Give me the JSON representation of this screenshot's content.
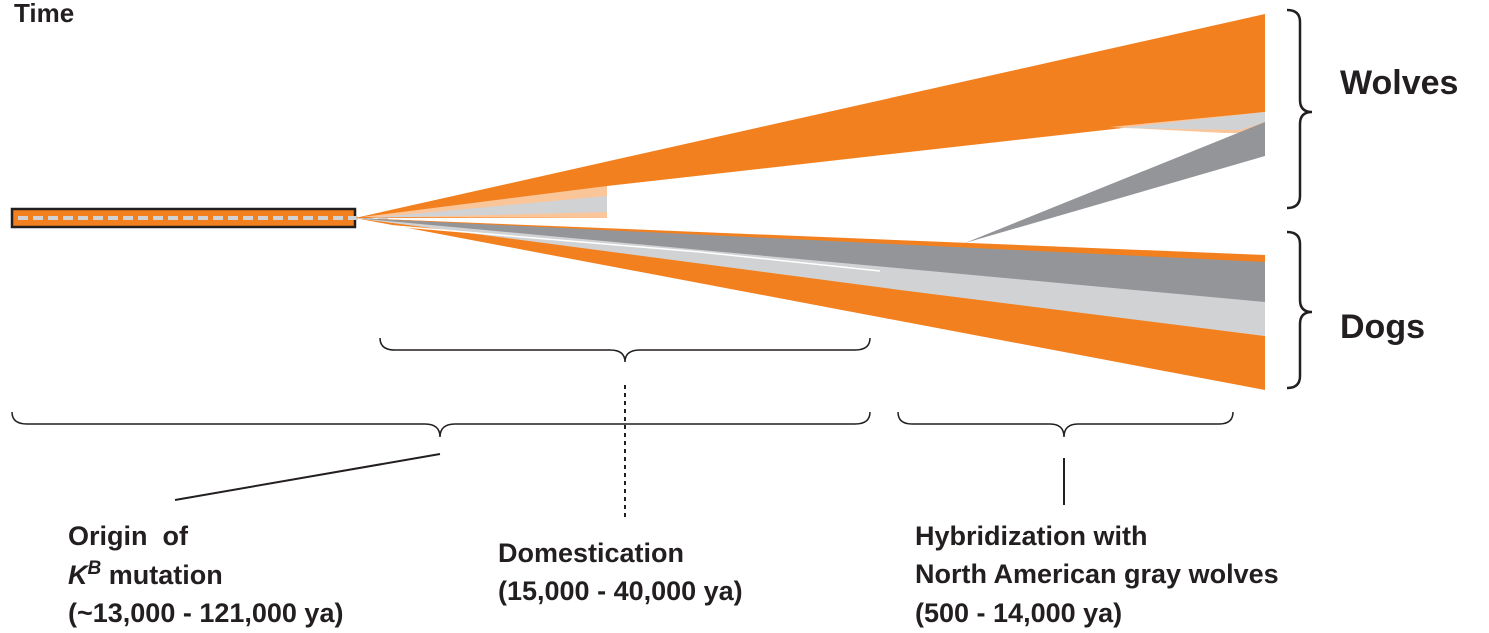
{
  "axis": {
    "label": "Time"
  },
  "groups": {
    "wolves": "Wolves",
    "dogs": "Dogs"
  },
  "annotations": {
    "origin": {
      "line1": "Origin  of",
      "line2_letter": "K",
      "line2_superscript": "B",
      "line2_rest": " mutation",
      "line3": "(~13,000 - 121,000 ya)"
    },
    "domestication": {
      "line1": "Domestication",
      "line2": "(15,000 - 40,000 ya)"
    },
    "hybridization": {
      "line1": "Hybridization with",
      "line2": "North American gray wolves",
      "line3": "(500 - 14,000 ya)"
    }
  },
  "colors": {
    "orange": "#f3801f",
    "light_orange": "#fbc59a",
    "light_gray": "#d1d2d4",
    "dark_gray": "#939598",
    "black": "#231f20"
  }
}
